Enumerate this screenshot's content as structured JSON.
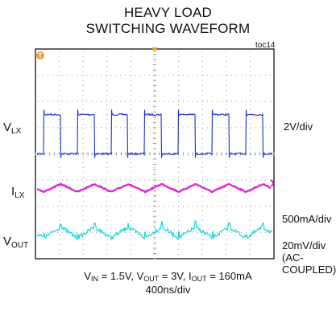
{
  "title_line1": "HEAVY LOAD",
  "title_line2": "SWITCHING WAVEFORM",
  "figure_id": "toc14",
  "traces": {
    "vlx": {
      "label_main": "V",
      "label_sub": "LX",
      "scale": "2V/div",
      "color": "#1a2fd6"
    },
    "ilx": {
      "label_main": "I",
      "label_sub": "LX",
      "scale": "500mA/div",
      "color": "#e01fd6"
    },
    "vout": {
      "label_main": "V",
      "label_sub": "OUT",
      "scale": "20mV/div",
      "scale_note_1": "(AC-",
      "scale_note_2": "COUPLED)",
      "color": "#19d6de"
    }
  },
  "conditions": {
    "vin_main": "V",
    "vin_sub": "IN",
    "vin_val": " = 1.5V, ",
    "vout_main": "V",
    "vout_sub": "OUT",
    "vout_val": " = 3V, ",
    "iout_main": "I",
    "iout_sub": "OUT",
    "iout_val": " = 160mA",
    "timebase": "400ns/div"
  },
  "chart_data": {
    "type": "line",
    "x_divisions": 10,
    "y_divisions": 8,
    "grid": true,
    "x_unit": "ns",
    "x_per_div": 400,
    "switching_period_ns": 565,
    "series": [
      {
        "name": "VLX",
        "waveform": "square",
        "high_v": 3.0,
        "low_v": 0.0,
        "duty": 0.5,
        "volts_per_div": 2
      },
      {
        "name": "ILX",
        "waveform": "triangle",
        "peak_to_peak_mA": 150,
        "mA_per_div": 500
      },
      {
        "name": "VOUT",
        "waveform": "ripple",
        "peak_to_peak_mV": 15,
        "mV_per_div": 20,
        "coupling": "AC"
      }
    ]
  }
}
